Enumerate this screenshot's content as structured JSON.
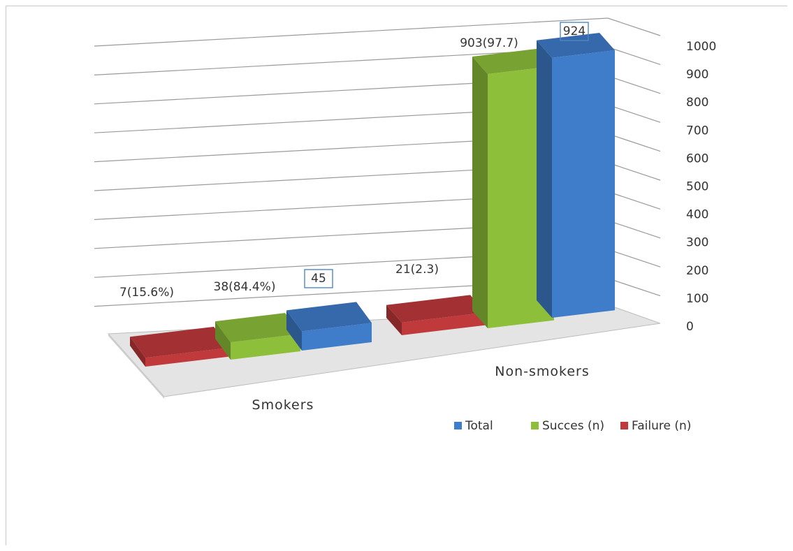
{
  "chart_data": {
    "type": "bar",
    "categories": [
      "Smokers",
      "Non-smokers"
    ],
    "series": [
      {
        "name": "Failure (n)",
        "values": [
          7,
          21
        ],
        "labels": [
          "7(15.6%)",
          "21(2.3)"
        ],
        "color": "#c0393b"
      },
      {
        "name": "Succes (n)",
        "values": [
          38,
          903
        ],
        "labels": [
          "38(84.4%)",
          "903(97.7)"
        ],
        "color": "#8dbf3b"
      },
      {
        "name": "Total",
        "values": [
          45,
          924
        ],
        "labels": [
          "45",
          "924"
        ],
        "color": "#3f7cc9"
      }
    ],
    "legend_order": [
      "Total",
      "Succes (n)",
      "Failure (n)"
    ],
    "legend_position": "bottom-right",
    "ylim": [
      0,
      1000
    ],
    "yticks": [
      "0",
      "100",
      "200",
      "300",
      "400",
      "500",
      "600",
      "700",
      "800",
      "900",
      "1000"
    ],
    "grid": true,
    "style": "3d-clustered"
  }
}
